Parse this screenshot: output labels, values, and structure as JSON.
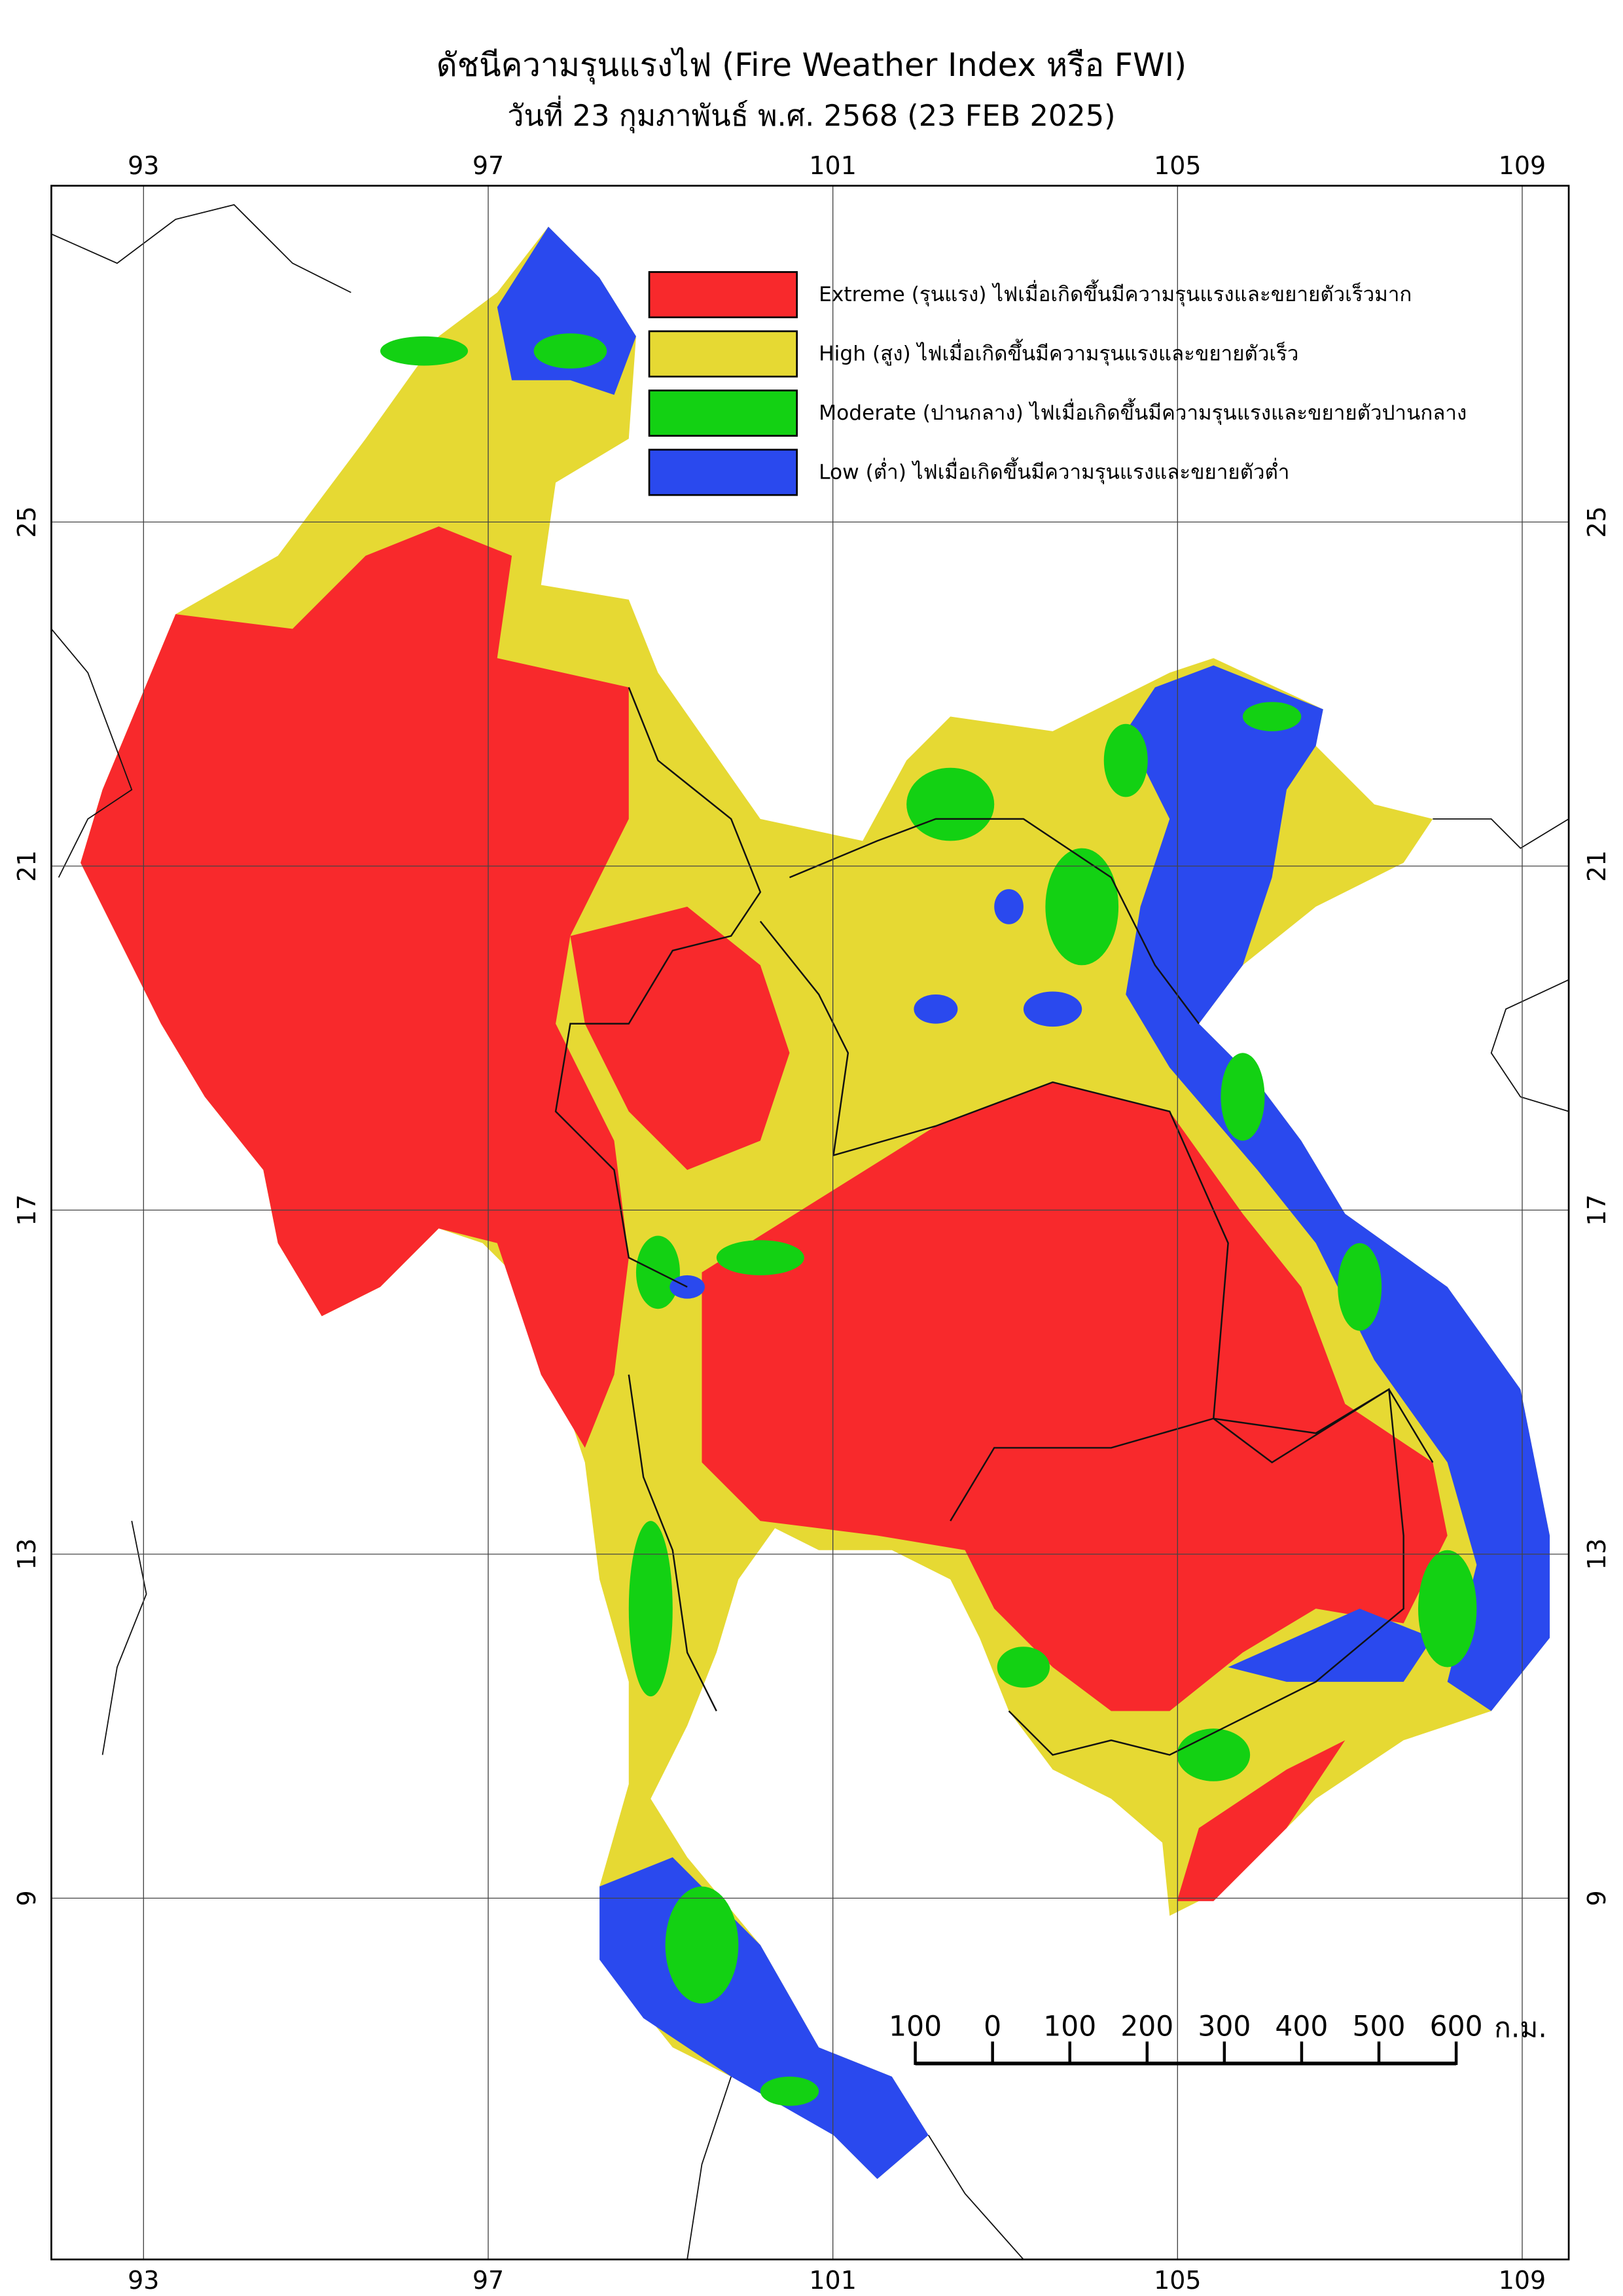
{
  "map": {
    "title": "ดัชนีความรุนแรงไฟ (Fire Weather Index หรือ FWI)",
    "subtitle": "วันที่ 23 กุมภาพันธ์ พ.ศ. 2568 (23 FEB 2025)",
    "lon_range": [
      91.93,
      109.54
    ],
    "lat_range": [
      4.8,
      28.91
    ],
    "lon_ticks": [
      93,
      97,
      101,
      105,
      109
    ],
    "lat_ticks": [
      25,
      21,
      17,
      13,
      9
    ],
    "legend": [
      {
        "name": "Extreme (รุนแรง) ไฟเมื่อเกิดขึ้นมีความรุนแรงและขยายตัวเร็วมาก",
        "color": "#f8292c"
      },
      {
        "name": "High (สูง) ไฟเมื่อเกิดขึ้นมีความรุนแรงและขยายตัวเร็ว",
        "color": "#e6d933"
      },
      {
        "name": "Moderate (ปานกลาง) ไฟเมื่อเกิดขึ้นมีความรุนแรงและขยายตัวปานกลาง",
        "color": "#13d113"
      },
      {
        "name": "Low (ต่ำ) ไฟเมื่อเกิดขึ้นมีความรุนแรงและขยายตัวต่ำ",
        "color": "#2a49ee"
      }
    ],
    "scale_bar": {
      "range": [
        -100,
        600
      ],
      "ticks": [
        {
          "value": -100,
          "label": "100"
        },
        0,
        100,
        200,
        300,
        400,
        500,
        600
      ],
      "unit": "ก.ม."
    }
  }
}
